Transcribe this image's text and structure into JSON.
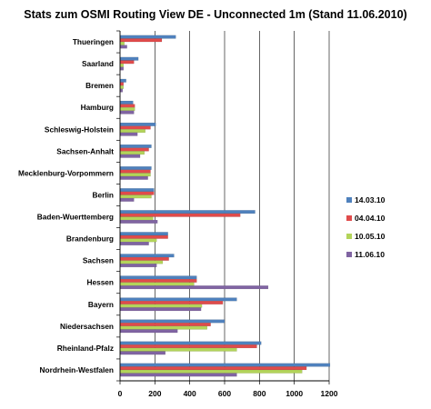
{
  "chart_data": {
    "type": "bar",
    "orientation": "horizontal",
    "title": "Stats zum OSMI Routing View DE - Unconnected 1m (Stand 11.06.2010)",
    "xlabel": "",
    "ylabel": "",
    "xlim": [
      0,
      1200
    ],
    "x_ticks": [
      "0",
      "200",
      "400",
      "600",
      "800",
      "1000",
      "1200"
    ],
    "grid": "vertical",
    "legend_position": "right",
    "categories": [
      "Thueringen",
      "Saarland",
      "Bremen",
      "Hamburg",
      "Schleswig-Holstein",
      "Sachsen-Anhalt",
      "Mecklenburg-Vorpommern",
      "Berlin",
      "Baden-Wuerttemberg",
      "Brandenburg",
      "Sachsen",
      "Hessen",
      "Bayern",
      "Niedersachsen",
      "Rheinland-Pfalz",
      "Nordrhein-Westfalen"
    ],
    "series": [
      {
        "name": "14.03.10",
        "color": "#4f81bd",
        "values": [
          320,
          105,
          35,
          75,
          205,
          180,
          180,
          195,
          775,
          275,
          310,
          440,
          670,
          600,
          810,
          1205
        ]
      },
      {
        "name": "04.04.10",
        "color": "#e04b4b",
        "values": [
          240,
          80,
          20,
          85,
          175,
          165,
          175,
          195,
          690,
          275,
          280,
          440,
          590,
          520,
          785,
          1070
        ]
      },
      {
        "name": "10.05.10",
        "color": "#b3d45a",
        "values": [
          25,
          20,
          20,
          85,
          145,
          140,
          175,
          180,
          190,
          210,
          245,
          425,
          470,
          500,
          670,
          1045
        ]
      },
      {
        "name": "11.06.10",
        "color": "#8064a2",
        "values": [
          40,
          20,
          15,
          80,
          100,
          115,
          160,
          80,
          215,
          165,
          210,
          850,
          465,
          330,
          260,
          670
        ]
      }
    ]
  }
}
